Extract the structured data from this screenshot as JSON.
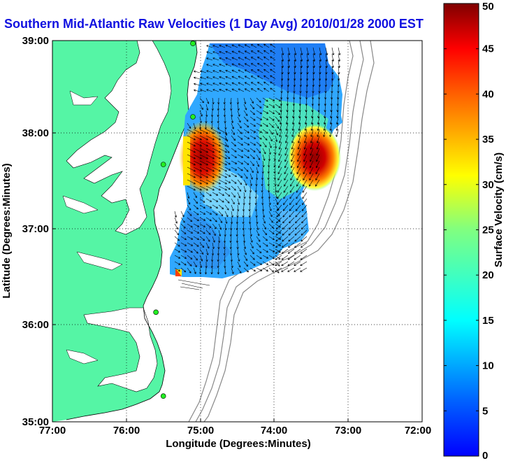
{
  "title": "Southern Mid-Atlantic Raw Velocities (1 Day Avg) 2010/01/28 2000 EST",
  "map": {
    "xlabel": "Longitude (Degrees:Minutes)",
    "ylabel": "Latitude (Degrees:Minutes)",
    "x_ticks": [
      "77:00",
      "76:00",
      "75:00",
      "74:00",
      "73:00",
      "72:00"
    ],
    "y_ticks": [
      "39:00",
      "38:00",
      "37:00",
      "36:00",
      "35:00"
    ],
    "lon_range": [
      -77,
      -72
    ],
    "lat_range": [
      35,
      39
    ],
    "land_color": "#55f5a5",
    "grid": "dotted",
    "stations": [
      {
        "lon": -75.1,
        "lat": 38.97
      },
      {
        "lon": -75.1,
        "lat": 38.2
      },
      {
        "lon": -75.5,
        "lat": 37.7
      },
      {
        "lon": -75.6,
        "lat": 36.15
      },
      {
        "lon": -75.5,
        "lat": 35.27
      }
    ]
  },
  "colorbar": {
    "label": "Surface Velocity (cm/s)",
    "ticks": [
      "0",
      "5",
      "10",
      "15",
      "20",
      "25",
      "30",
      "35",
      "40",
      "45",
      "50"
    ],
    "range": [
      0,
      50
    ],
    "colormap": "jet"
  }
}
